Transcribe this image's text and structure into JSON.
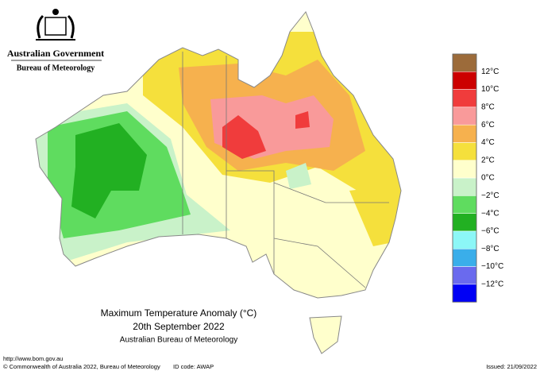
{
  "header": {
    "agency": "Australian Government",
    "bureau": "Bureau of Meteorology"
  },
  "title": {
    "line1": "Maximum Temperature Anomaly (°C)",
    "line2": "20th September 2022",
    "line3": "Australian Bureau of Meteorology"
  },
  "legend": {
    "colors": [
      "#9c6b3a",
      "#cc0000",
      "#f03c3c",
      "#f99a9a",
      "#f6b14e",
      "#f5e03c",
      "#ffffcc",
      "#c9f2c9",
      "#5fdc5f",
      "#22b022",
      "#8cf7f7",
      "#3aaeea",
      "#6a6aee",
      "#0000f5"
    ],
    "labels": [
      "12°C",
      "10°C",
      "8°C",
      "6°C",
      "4°C",
      "2°C",
      "0°C",
      "−2°C",
      "−4°C",
      "−6°C",
      "−8°C",
      "−10°C",
      "−12°C"
    ]
  },
  "footer": {
    "url": "http://www.bom.gov.au",
    "copyright": "© Commonwealth of Australia 2022, Bureau of Meteorology",
    "id_code": "ID code: AWAP",
    "issued": "Issued: 21/09/2022"
  }
}
